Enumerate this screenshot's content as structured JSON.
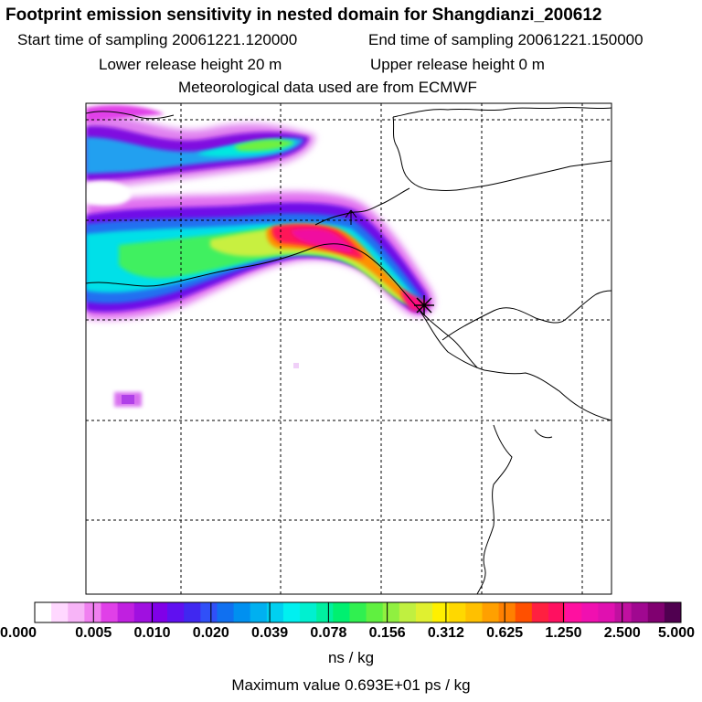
{
  "header": {
    "title": "Footprint emission sensitivity in nested domain for Shangdianzi_200612",
    "start_time": "Start time of sampling 20061221.120000",
    "end_time": "End time of sampling 20061221.150000",
    "lower_height": "Lower release height   20 m",
    "upper_height": "Upper release height    0 m",
    "meteo": "Meteorological data used are from ECMWF"
  },
  "legend": {
    "ticks": [
      "0.000",
      "0.005",
      "0.010",
      "0.020",
      "0.039",
      "0.078",
      "0.156",
      "0.312",
      "0.625",
      "1.250",
      "2.500",
      "5.000"
    ],
    "colors": [
      "#ffffff",
      "#ffd8ff",
      "#f7b4f7",
      "#f080f0",
      "#e040e8",
      "#c020e0",
      "#a010e0",
      "#8000e8",
      "#6010f0",
      "#4028f0",
      "#3050f8",
      "#1070f0",
      "#0090f0",
      "#00b0f0",
      "#00d0f0",
      "#00f0f0",
      "#00f0d0",
      "#00f0a0",
      "#00f070",
      "#30f050",
      "#60f040",
      "#90f040",
      "#c0f040",
      "#e0f030",
      "#fff000",
      "#ffd800",
      "#ffc000",
      "#ffa000",
      "#ff8000",
      "#ff5000",
      "#ff2040",
      "#ff1060",
      "#ff10a0",
      "#f010b0",
      "#e010b0",
      "#c010a0",
      "#a00890",
      "#800070",
      "#500050"
    ],
    "unit": "ns / kg",
    "max_value": "Maximum value  0.693E+01 ps / kg"
  }
}
